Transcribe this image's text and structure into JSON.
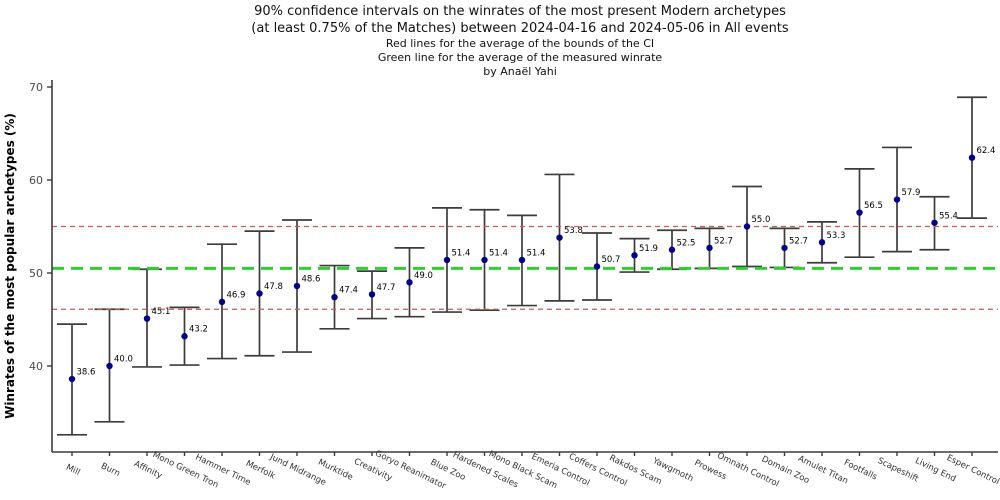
{
  "title": {
    "line1": "90% confidence intervals on the winrates of the most present Modern archetypes",
    "line2": "(at least 0.75% of the Matches) between 2024-04-16 and 2024-05-06 in All events",
    "subtitle_red": "Red lines for the average of the bounds of the CI",
    "subtitle_green": "Green line for the average of the measured winrate",
    "byline": "by Anaël Yahi"
  },
  "chart_data": {
    "type": "scatter",
    "title": "90% confidence intervals on the winrates of the most present Modern archetypes (at least 0.75% of the Matches) between 2024-04-16 and 2024-05-06 in All events",
    "xlabel": "",
    "ylabel": "Winrates of the most popular archetypes (%)",
    "ylim": [
      30.8,
      70.8
    ],
    "yticks": [
      40,
      50,
      60,
      70
    ],
    "grid": false,
    "legend": "none",
    "categories": [
      "Mill",
      "Burn",
      "Affinity",
      "Mono Green Tron",
      "Hammer Time",
      "Merfolk",
      "Jund Midrange",
      "Murktide",
      "Creativity",
      "Goryo Reanimator",
      "Blue Zoo",
      "Hardened Scales",
      "Mono Black Scam",
      "Emeria Control",
      "Coffers Control",
      "Rakdos Scam",
      "Yawgmoth",
      "Prowess",
      "Omnath Control",
      "Domain Zoo",
      "Amulet Titan",
      "Footfalls",
      "Scapeshift",
      "Living End",
      "Esper Control"
    ],
    "points": [
      {
        "archetype": "Mill",
        "winrate": 38.6,
        "ci_low": 32.6,
        "ci_high": 44.5
      },
      {
        "archetype": "Burn",
        "winrate": 40.0,
        "ci_low": 34.0,
        "ci_high": 46.1
      },
      {
        "archetype": "Affinity",
        "winrate": 45.1,
        "ci_low": 39.9,
        "ci_high": 50.4
      },
      {
        "archetype": "Mono Green Tron",
        "winrate": 43.2,
        "ci_low": 40.1,
        "ci_high": 46.3
      },
      {
        "archetype": "Hammer Time",
        "winrate": 46.9,
        "ci_low": 40.8,
        "ci_high": 53.1
      },
      {
        "archetype": "Merfolk",
        "winrate": 47.8,
        "ci_low": 41.1,
        "ci_high": 54.5
      },
      {
        "archetype": "Jund Midrange",
        "winrate": 48.6,
        "ci_low": 41.5,
        "ci_high": 55.7
      },
      {
        "archetype": "Murktide",
        "winrate": 47.4,
        "ci_low": 44.0,
        "ci_high": 50.8
      },
      {
        "archetype": "Creativity",
        "winrate": 47.7,
        "ci_low": 45.1,
        "ci_high": 50.2
      },
      {
        "archetype": "Goryo Reanimator",
        "winrate": 49.0,
        "ci_low": 45.3,
        "ci_high": 52.7
      },
      {
        "archetype": "Blue Zoo",
        "winrate": 51.4,
        "ci_low": 45.8,
        "ci_high": 57.0
      },
      {
        "archetype": "Hardened Scales",
        "winrate": 51.4,
        "ci_low": 46.0,
        "ci_high": 56.8
      },
      {
        "archetype": "Mono Black Scam",
        "winrate": 51.4,
        "ci_low": 46.5,
        "ci_high": 56.2
      },
      {
        "archetype": "Emeria Control",
        "winrate": 53.8,
        "ci_low": 47.0,
        "ci_high": 60.6
      },
      {
        "archetype": "Coffers Control",
        "winrate": 50.7,
        "ci_low": 47.1,
        "ci_high": 54.3
      },
      {
        "archetype": "Rakdos Scam",
        "winrate": 51.9,
        "ci_low": 50.1,
        "ci_high": 53.7
      },
      {
        "archetype": "Yawgmoth",
        "winrate": 52.5,
        "ci_low": 50.4,
        "ci_high": 54.6
      },
      {
        "archetype": "Prowess",
        "winrate": 52.7,
        "ci_low": 50.5,
        "ci_high": 54.8
      },
      {
        "archetype": "Omnath Control",
        "winrate": 55.0,
        "ci_low": 50.7,
        "ci_high": 59.3
      },
      {
        "archetype": "Domain Zoo",
        "winrate": 52.7,
        "ci_low": 50.6,
        "ci_high": 54.8
      },
      {
        "archetype": "Amulet Titan",
        "winrate": 53.3,
        "ci_low": 51.1,
        "ci_high": 55.5
      },
      {
        "archetype": "Footfalls",
        "winrate": 56.5,
        "ci_low": 51.7,
        "ci_high": 61.2
      },
      {
        "archetype": "Scapeshift",
        "winrate": 57.9,
        "ci_low": 52.3,
        "ci_high": 63.5
      },
      {
        "archetype": "Living End",
        "winrate": 55.4,
        "ci_low": 52.5,
        "ci_high": 58.2
      },
      {
        "archetype": "Esper Control",
        "winrate": 62.4,
        "ci_low": 55.9,
        "ci_high": 68.9
      }
    ],
    "reference_lines": [
      {
        "name": "average of CI upper bounds",
        "value": 55.0,
        "color": "#c45c5c",
        "style": "dashed-thin"
      },
      {
        "name": "average of measured winrates",
        "value": 50.5,
        "color": "#32cd32",
        "style": "dashed-thick"
      },
      {
        "name": "average of CI lower bounds",
        "value": 46.1,
        "color": "#c45c5c",
        "style": "dashed-thin"
      }
    ],
    "colors": {
      "point": "#00008b",
      "error_bar": "#3c3c3c",
      "axis": "#3c3c3c",
      "value_label": "#000000",
      "tick_label": "#4a4a4a",
      "red_line": "#c45c5c",
      "green_line": "#32cd32"
    }
  }
}
